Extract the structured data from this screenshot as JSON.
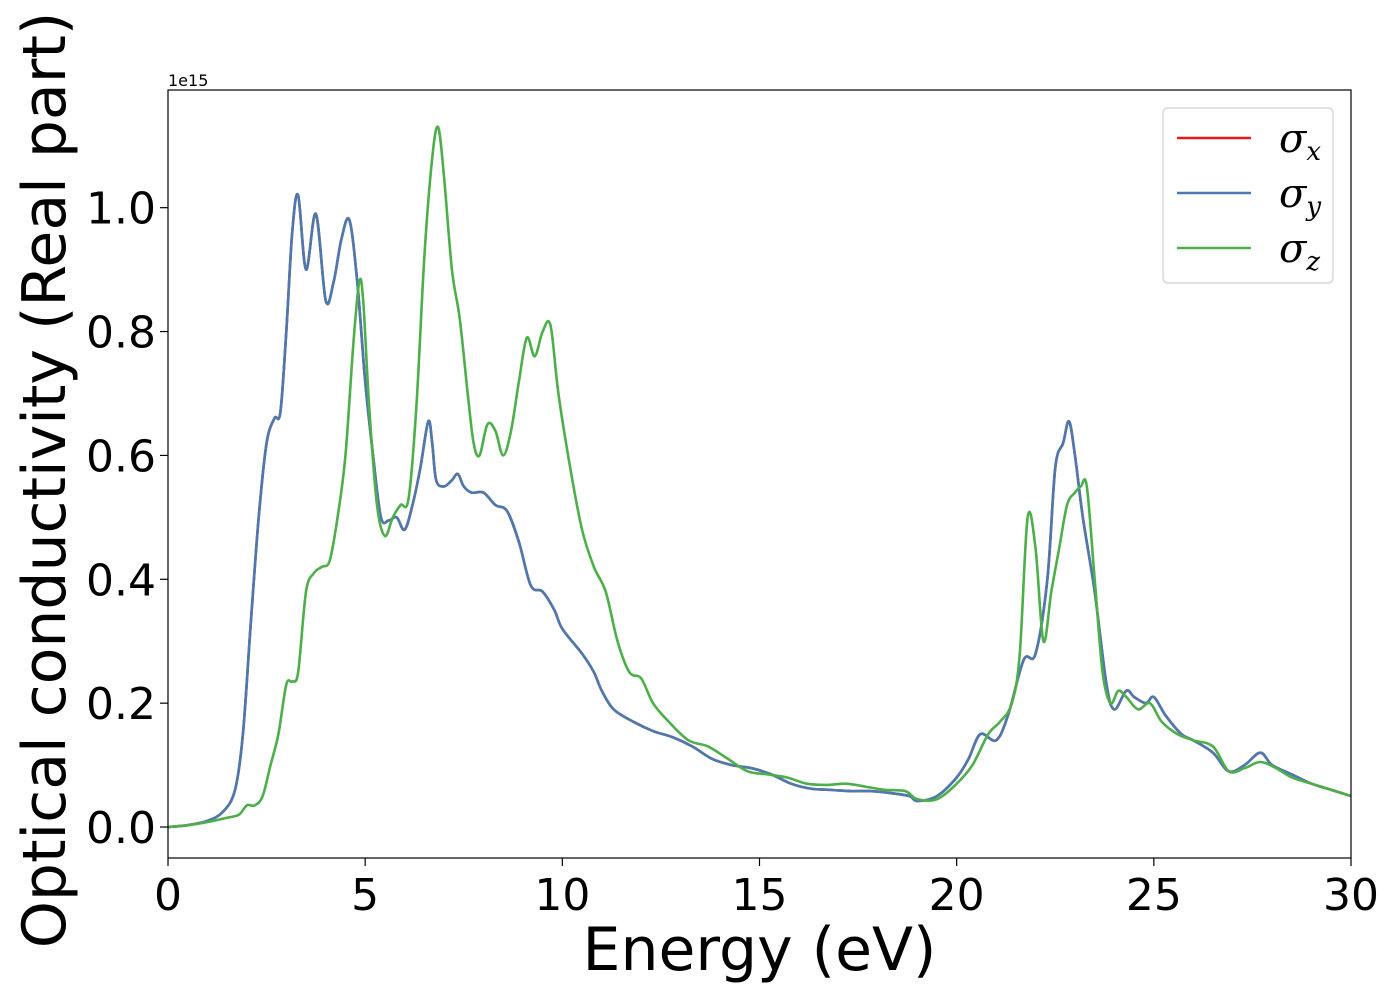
{
  "chart_data": {
    "type": "line",
    "xlabel": "Energy (eV)",
    "ylabel": "Optical conductivity (Real part)",
    "y_offset_text": "1e15",
    "y_scale_factor": 1000000000000000.0,
    "xlim": [
      0,
      30
    ],
    "ylim": [
      -0.05,
      1.19
    ],
    "x_ticks": [
      0,
      5,
      10,
      15,
      20,
      25,
      30
    ],
    "x_tick_labels": [
      "0",
      "5",
      "10",
      "15",
      "20",
      "25",
      "30"
    ],
    "y_ticks": [
      0.0,
      0.2,
      0.4,
      0.6,
      0.8,
      1.0
    ],
    "y_tick_labels": [
      "0.0",
      "0.2",
      "0.4",
      "0.6",
      "0.8",
      "1.0"
    ],
    "grid": false,
    "legend_position": "top-right",
    "series": [
      {
        "name": "σx",
        "symbol": "σ",
        "subscript": "x",
        "color": "#e41a1c",
        "x": [
          0,
          0.5,
          1,
          1.4,
          1.7,
          1.9,
          2.1,
          2.3,
          2.5,
          2.7,
          2.85,
          3.0,
          3.15,
          3.3,
          3.5,
          3.75,
          4.0,
          4.2,
          4.4,
          4.6,
          4.8,
          5.0,
          5.2,
          5.4,
          5.6,
          5.8,
          6.0,
          6.2,
          6.4,
          6.6,
          6.7,
          6.8,
          7.0,
          7.2,
          7.35,
          7.5,
          7.7,
          8.0,
          8.3,
          8.6,
          8.9,
          9.2,
          9.5,
          9.8,
          10.0,
          10.5,
          10.8,
          11.0,
          11.3,
          11.8,
          12.3,
          12.8,
          13.3,
          13.8,
          14.3,
          14.8,
          15.3,
          15.8,
          16.3,
          16.8,
          17.3,
          17.8,
          18.3,
          18.8,
          19.0,
          19.5,
          20.0,
          20.3,
          20.6,
          21.0,
          21.3,
          21.7,
          22.0,
          22.3,
          22.5,
          22.7,
          22.85,
          23.0,
          23.2,
          23.5,
          23.8,
          24.0,
          24.3,
          24.5,
          24.8,
          25.0,
          25.3,
          25.7,
          26.0,
          26.5,
          26.9,
          27.3,
          27.7,
          28.0,
          28.5,
          29.0,
          29.5,
          30.0
        ],
        "y": [
          0,
          0.003,
          0.01,
          0.025,
          0.06,
          0.15,
          0.33,
          0.5,
          0.62,
          0.66,
          0.67,
          0.8,
          0.96,
          1.02,
          0.9,
          0.99,
          0.85,
          0.88,
          0.95,
          0.98,
          0.88,
          0.72,
          0.6,
          0.5,
          0.495,
          0.5,
          0.48,
          0.52,
          0.58,
          0.655,
          0.62,
          0.56,
          0.55,
          0.56,
          0.57,
          0.55,
          0.54,
          0.54,
          0.52,
          0.51,
          0.46,
          0.39,
          0.38,
          0.35,
          0.32,
          0.28,
          0.25,
          0.22,
          0.19,
          0.17,
          0.155,
          0.145,
          0.13,
          0.11,
          0.1,
          0.095,
          0.085,
          0.07,
          0.062,
          0.06,
          0.058,
          0.058,
          0.055,
          0.05,
          0.042,
          0.05,
          0.08,
          0.11,
          0.15,
          0.14,
          0.18,
          0.27,
          0.28,
          0.4,
          0.58,
          0.62,
          0.655,
          0.6,
          0.5,
          0.38,
          0.23,
          0.19,
          0.22,
          0.21,
          0.2,
          0.21,
          0.18,
          0.15,
          0.14,
          0.12,
          0.09,
          0.1,
          0.12,
          0.1,
          0.085,
          0.07,
          0.06,
          0.05
        ]
      },
      {
        "name": "σy",
        "symbol": "σ",
        "subscript": "y",
        "color": "#4a7ab0",
        "x": [
          0,
          0.5,
          1,
          1.4,
          1.7,
          1.9,
          2.1,
          2.3,
          2.5,
          2.7,
          2.85,
          3.0,
          3.15,
          3.3,
          3.5,
          3.75,
          4.0,
          4.2,
          4.4,
          4.6,
          4.8,
          5.0,
          5.2,
          5.4,
          5.6,
          5.8,
          6.0,
          6.2,
          6.4,
          6.6,
          6.7,
          6.8,
          7.0,
          7.2,
          7.35,
          7.5,
          7.7,
          8.0,
          8.3,
          8.6,
          8.9,
          9.2,
          9.5,
          9.8,
          10.0,
          10.5,
          10.8,
          11.0,
          11.3,
          11.8,
          12.3,
          12.8,
          13.3,
          13.8,
          14.3,
          14.8,
          15.3,
          15.8,
          16.3,
          16.8,
          17.3,
          17.8,
          18.3,
          18.8,
          19.0,
          19.5,
          20.0,
          20.3,
          20.6,
          21.0,
          21.3,
          21.7,
          22.0,
          22.3,
          22.5,
          22.7,
          22.85,
          23.0,
          23.2,
          23.5,
          23.8,
          24.0,
          24.3,
          24.5,
          24.8,
          25.0,
          25.3,
          25.7,
          26.0,
          26.5,
          26.9,
          27.3,
          27.7,
          28.0,
          28.5,
          29.0,
          29.5,
          30.0
        ],
        "y": [
          0,
          0.003,
          0.01,
          0.025,
          0.06,
          0.15,
          0.33,
          0.5,
          0.62,
          0.66,
          0.67,
          0.8,
          0.96,
          1.02,
          0.9,
          0.99,
          0.85,
          0.88,
          0.95,
          0.98,
          0.88,
          0.72,
          0.6,
          0.5,
          0.495,
          0.5,
          0.48,
          0.52,
          0.58,
          0.655,
          0.62,
          0.56,
          0.55,
          0.56,
          0.57,
          0.55,
          0.54,
          0.54,
          0.52,
          0.51,
          0.46,
          0.39,
          0.38,
          0.35,
          0.32,
          0.28,
          0.25,
          0.22,
          0.19,
          0.17,
          0.155,
          0.145,
          0.13,
          0.11,
          0.1,
          0.095,
          0.085,
          0.07,
          0.062,
          0.06,
          0.058,
          0.058,
          0.055,
          0.05,
          0.042,
          0.05,
          0.08,
          0.11,
          0.15,
          0.14,
          0.18,
          0.27,
          0.28,
          0.4,
          0.58,
          0.62,
          0.655,
          0.6,
          0.5,
          0.38,
          0.23,
          0.19,
          0.22,
          0.21,
          0.2,
          0.21,
          0.18,
          0.15,
          0.14,
          0.12,
          0.09,
          0.1,
          0.12,
          0.1,
          0.085,
          0.07,
          0.06,
          0.05
        ]
      },
      {
        "name": "σz",
        "symbol": "σ",
        "subscript": "z",
        "color": "#4daf4a",
        "x": [
          0,
          0.5,
          1,
          1.5,
          1.8,
          2.0,
          2.2,
          2.4,
          2.6,
          2.8,
          3.0,
          3.15,
          3.3,
          3.5,
          3.7,
          3.9,
          4.1,
          4.3,
          4.5,
          4.7,
          4.85,
          4.95,
          5.1,
          5.3,
          5.5,
          5.7,
          5.9,
          6.1,
          6.3,
          6.5,
          6.7,
          6.85,
          7.0,
          7.2,
          7.4,
          7.6,
          7.75,
          7.9,
          8.1,
          8.3,
          8.5,
          8.7,
          8.9,
          9.1,
          9.3,
          9.5,
          9.7,
          9.9,
          10.2,
          10.5,
          10.8,
          11.1,
          11.4,
          11.7,
          12.0,
          12.3,
          12.7,
          13.2,
          13.7,
          14.2,
          14.7,
          15.2,
          15.7,
          16.2,
          16.7,
          17.2,
          17.7,
          18.2,
          18.7,
          19.0,
          19.5,
          20.0,
          20.4,
          20.8,
          21.1,
          21.4,
          21.6,
          21.8,
          22.0,
          22.2,
          22.4,
          22.6,
          22.8,
          23.0,
          23.15,
          23.3,
          23.5,
          23.7,
          23.9,
          24.1,
          24.3,
          24.6,
          24.9,
          25.2,
          25.6,
          26.0,
          26.5,
          26.9,
          27.3,
          27.7,
          28.1,
          28.5,
          29.0,
          29.5,
          30.0
        ],
        "y": [
          0,
          0.003,
          0.008,
          0.015,
          0.02,
          0.035,
          0.035,
          0.05,
          0.1,
          0.15,
          0.23,
          0.235,
          0.25,
          0.38,
          0.41,
          0.42,
          0.43,
          0.5,
          0.6,
          0.78,
          0.88,
          0.85,
          0.68,
          0.52,
          0.47,
          0.5,
          0.52,
          0.53,
          0.68,
          0.92,
          1.08,
          1.13,
          1.05,
          0.9,
          0.82,
          0.7,
          0.62,
          0.6,
          0.65,
          0.64,
          0.6,
          0.64,
          0.72,
          0.79,
          0.76,
          0.8,
          0.81,
          0.7,
          0.58,
          0.48,
          0.42,
          0.38,
          0.3,
          0.25,
          0.24,
          0.2,
          0.17,
          0.14,
          0.13,
          0.11,
          0.09,
          0.085,
          0.08,
          0.07,
          0.068,
          0.07,
          0.065,
          0.06,
          0.058,
          0.045,
          0.045,
          0.07,
          0.1,
          0.15,
          0.17,
          0.2,
          0.28,
          0.5,
          0.45,
          0.3,
          0.38,
          0.45,
          0.52,
          0.54,
          0.55,
          0.55,
          0.4,
          0.25,
          0.2,
          0.22,
          0.21,
          0.19,
          0.2,
          0.17,
          0.15,
          0.14,
          0.13,
          0.09,
          0.095,
          0.105,
          0.095,
          0.08,
          0.07,
          0.06,
          0.05
        ]
      }
    ]
  }
}
